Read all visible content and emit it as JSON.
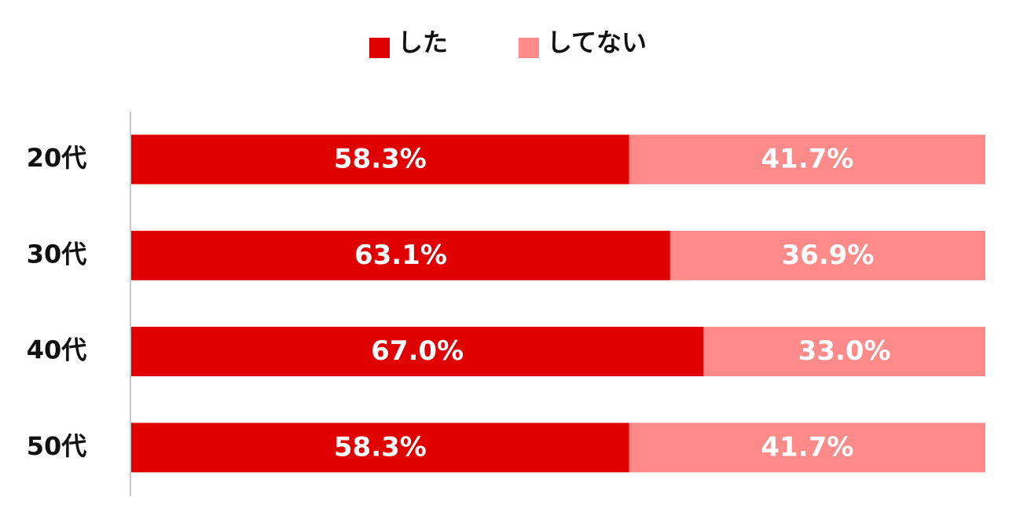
{
  "chart_data": {
    "type": "stacked-bar-horizontal",
    "categories": [
      "20代",
      "30代",
      "40代",
      "50代"
    ],
    "series": [
      {
        "name": "した",
        "color": "#e00000",
        "values": [
          58.3,
          63.1,
          67.0,
          58.3
        ],
        "value_labels": [
          "58.3%",
          "63.1%",
          "67.0%",
          "58.3%"
        ]
      },
      {
        "name": "してない",
        "color": "#ff8a8a",
        "values": [
          41.7,
          36.9,
          33.0,
          41.7
        ],
        "value_labels": [
          "41.7%",
          "36.9%",
          "33.0%",
          "41.7%"
        ]
      }
    ],
    "xlim": [
      0,
      100
    ],
    "legend": "top"
  }
}
